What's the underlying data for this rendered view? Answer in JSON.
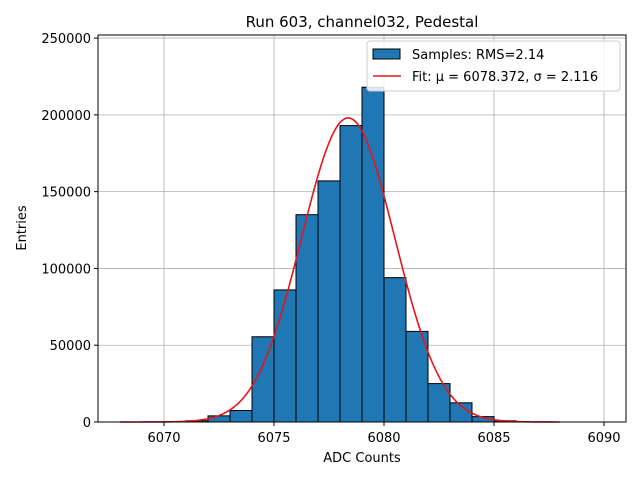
{
  "chart_data": {
    "type": "bar",
    "title": "Run 603, channel032, Pedestal",
    "xlabel": "ADC Counts",
    "ylabel": "Entries",
    "xlim": [
      6067,
      6091
    ],
    "ylim": [
      0,
      252000
    ],
    "grid": true,
    "legend_position": "top-right",
    "x_ticks": [
      6070,
      6075,
      6080,
      6085,
      6090
    ],
    "y_ticks": [
      0,
      50000,
      100000,
      150000,
      200000,
      250000
    ],
    "bins": [
      {
        "left": 6071,
        "right": 6072,
        "value": 800
      },
      {
        "left": 6072,
        "right": 6073,
        "value": 4000
      },
      {
        "left": 6073,
        "right": 6074,
        "value": 7500
      },
      {
        "left": 6074,
        "right": 6075,
        "value": 55500
      },
      {
        "left": 6075,
        "right": 6076,
        "value": 86000
      },
      {
        "left": 6076,
        "right": 6077,
        "value": 135000
      },
      {
        "left": 6077,
        "right": 6078,
        "value": 157000
      },
      {
        "left": 6078,
        "right": 6079,
        "value": 193000
      },
      {
        "left": 6079,
        "right": 6080,
        "value": 218000
      },
      {
        "left": 6080,
        "right": 6081,
        "value": 94000
      },
      {
        "left": 6081,
        "right": 6082,
        "value": 59000
      },
      {
        "left": 6082,
        "right": 6083,
        "value": 25000
      },
      {
        "left": 6083,
        "right": 6084,
        "value": 12500
      },
      {
        "left": 6084,
        "right": 6085,
        "value": 3500
      },
      {
        "left": 6085,
        "right": 6086,
        "value": 800
      }
    ],
    "fit": {
      "mu": 6078.372,
      "sigma": 2.116,
      "peak": 198000,
      "x_range": [
        6068,
        6088
      ]
    },
    "series": [
      {
        "name": "Samples: RMS=2.14",
        "kind": "histogram",
        "color": "#1f77b4",
        "edge_color": "#000000"
      },
      {
        "name": "Fit: μ = 6078.372, σ = 2.116",
        "kind": "line",
        "color": "#e8141b"
      }
    ]
  }
}
